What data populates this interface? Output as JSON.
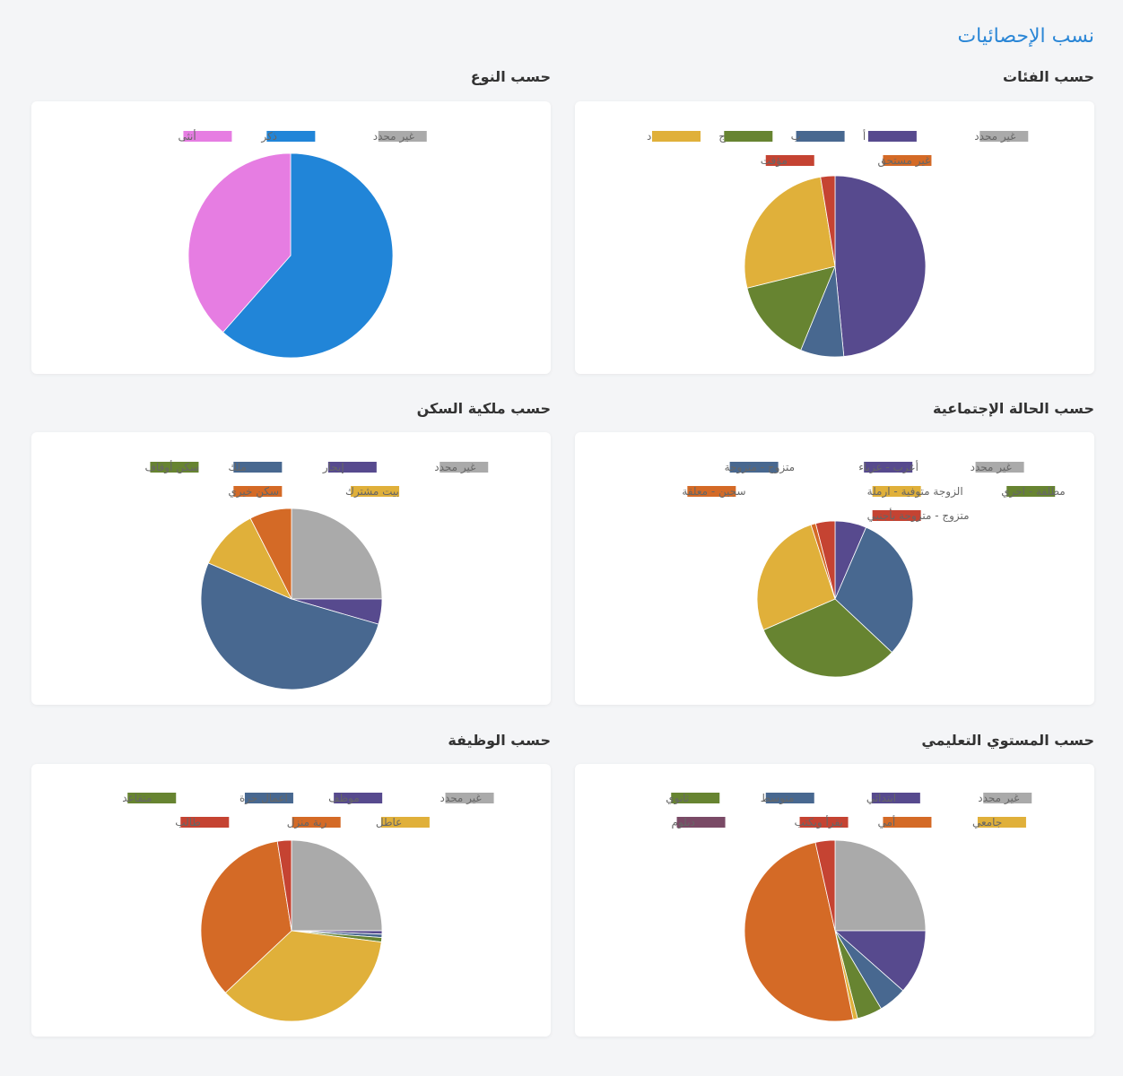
{
  "page_title": "نسب الإحصائيات",
  "sections": [
    {
      "id": "categories",
      "title": "حسب الفئات"
    },
    {
      "id": "gender",
      "title": "حسب النوع"
    },
    {
      "id": "marital",
      "title": "حسب الحالة الإجتماعية"
    },
    {
      "id": "housing",
      "title": "حسب ملكية السكن"
    },
    {
      "id": "education",
      "title": "حسب المستوي التعليمي"
    },
    {
      "id": "job",
      "title": "حسب الوظيفة"
    }
  ],
  "chart_data": [
    {
      "id": "categories",
      "type": "pie",
      "title": "حسب الفئات",
      "legend_rows": [
        [
          "غير محدد",
          "أ",
          "ب",
          "ج",
          "د"
        ],
        [
          "غير مستحق",
          "مؤقت"
        ]
      ],
      "slices": [
        {
          "label": "غير محدد",
          "value": 0,
          "color": "#aaaaaa"
        },
        {
          "label": "أ",
          "value": 47.0,
          "color": "#574a8e"
        },
        {
          "label": "ب",
          "value": 7.5,
          "color": "#486890"
        },
        {
          "label": "ج",
          "value": 14.5,
          "color": "#678431"
        },
        {
          "label": "د",
          "value": 25.5,
          "color": "#e0b03a"
        },
        {
          "label": "غير مستحق",
          "value": 0,
          "color": "#d46a26"
        },
        {
          "label": "مؤقت",
          "value": 2.5,
          "color": "#c54332"
        }
      ]
    },
    {
      "id": "gender",
      "type": "pie",
      "title": "حسب النوع",
      "legend_rows": [
        [
          "غير محدد",
          "ذكر",
          "أنثى"
        ]
      ],
      "slices": [
        {
          "label": "غير محدد",
          "value": 0,
          "color": "#aaaaaa"
        },
        {
          "label": "ذكر",
          "value": 61.5,
          "color": "#2185d8"
        },
        {
          "label": "أنثى",
          "value": 38.5,
          "color": "#e67de2"
        }
      ]
    },
    {
      "id": "marital",
      "type": "pie",
      "title": "حسب الحالة الإجتماعية",
      "legend_rows": [
        [
          "غير محدد",
          "أعزب - عزباء",
          "متزوج - متزوجة"
        ],
        [
          "مطلقة - اخري",
          "الزوجة متوفية - ارملة",
          "سجين - معلقة"
        ],
        [
          "متزوج - متزوجة بأجنبي"
        ]
      ],
      "slices": [
        {
          "label": "غير محدد",
          "value": 0,
          "color": "#aaaaaa"
        },
        {
          "label": "أعزب - عزباء",
          "value": 6.5,
          "color": "#574a8e"
        },
        {
          "label": "متزوج - متزوجة",
          "value": 30.5,
          "color": "#486890"
        },
        {
          "label": "مطلقة - اخري",
          "value": 31.5,
          "color": "#678431"
        },
        {
          "label": "الزوجة متوفية - ارملة",
          "value": 26.5,
          "color": "#e0b03a"
        },
        {
          "label": "سجين - معلقة",
          "value": 1.0,
          "color": "#d46a26"
        },
        {
          "label": "متزوج - متزوجة بأجنبي",
          "value": 4.0,
          "color": "#c54332"
        }
      ]
    },
    {
      "id": "housing",
      "type": "pie",
      "title": "حسب ملكية السكن",
      "legend_rows": [
        [
          "غير محدد",
          "إيجار",
          "ملك",
          "سكن أوقاف"
        ],
        [
          "بيت مشترك",
          "سكن خيري"
        ]
      ],
      "slices": [
        {
          "label": "غير محدد",
          "value": 25.0,
          "color": "#aaaaaa"
        },
        {
          "label": "إيجار",
          "value": 4.5,
          "color": "#574a8e"
        },
        {
          "label": "ملك",
          "value": 52.0,
          "color": "#486890"
        },
        {
          "label": "سكن أوقاف",
          "value": 0,
          "color": "#678431"
        },
        {
          "label": "بيت مشترك",
          "value": 11.0,
          "color": "#e0b03a"
        },
        {
          "label": "سكن خيري",
          "value": 7.5,
          "color": "#d46a26"
        }
      ]
    },
    {
      "id": "education",
      "type": "pie",
      "title": "حسب المستوي التعليمي",
      "legend_rows": [
        [
          "غير محدد",
          "ابتدائي",
          "متوسط",
          "ثانوي"
        ],
        [
          "جامعي",
          "أمي",
          "يقرأ ويكتب",
          "دبلوم"
        ]
      ],
      "slices": [
        {
          "label": "غير محدد",
          "value": 25.0,
          "color": "#aaaaaa"
        },
        {
          "label": "ابتدائي",
          "value": 11.5,
          "color": "#574a8e"
        },
        {
          "label": "متوسط",
          "value": 5.0,
          "color": "#486890"
        },
        {
          "label": "ثانوي",
          "value": 4.5,
          "color": "#678431"
        },
        {
          "label": "جامعي",
          "value": 0.8,
          "color": "#e0b03a"
        },
        {
          "label": "أمي",
          "value": 49.7,
          "color": "#d46a26"
        },
        {
          "label": "يقرأ ويكتب",
          "value": 3.5,
          "color": "#c54332"
        },
        {
          "label": "دبلوم",
          "value": 0,
          "color": "#7a4a66"
        }
      ]
    },
    {
      "id": "job",
      "type": "pie",
      "title": "حسب الوظيفة",
      "legend_rows": [
        [
          "غير محدد",
          "موظف",
          "اعمال حرة",
          "متقاعد"
        ],
        [
          "عاطل",
          "ربة منزل",
          "طالب"
        ]
      ],
      "slices": [
        {
          "label": "غير محدد",
          "value": 25.0,
          "color": "#aaaaaa"
        },
        {
          "label": "موظف",
          "value": 0.6,
          "color": "#574a8e"
        },
        {
          "label": "اعمال حرة",
          "value": 0.6,
          "color": "#486890"
        },
        {
          "label": "متقاعد",
          "value": 0.8,
          "color": "#678431"
        },
        {
          "label": "عاطل",
          "value": 36.0,
          "color": "#e0b03a"
        },
        {
          "label": "ربة منزل",
          "value": 34.5,
          "color": "#d46a26"
        },
        {
          "label": "طالب",
          "value": 2.5,
          "color": "#c54332"
        }
      ]
    }
  ]
}
